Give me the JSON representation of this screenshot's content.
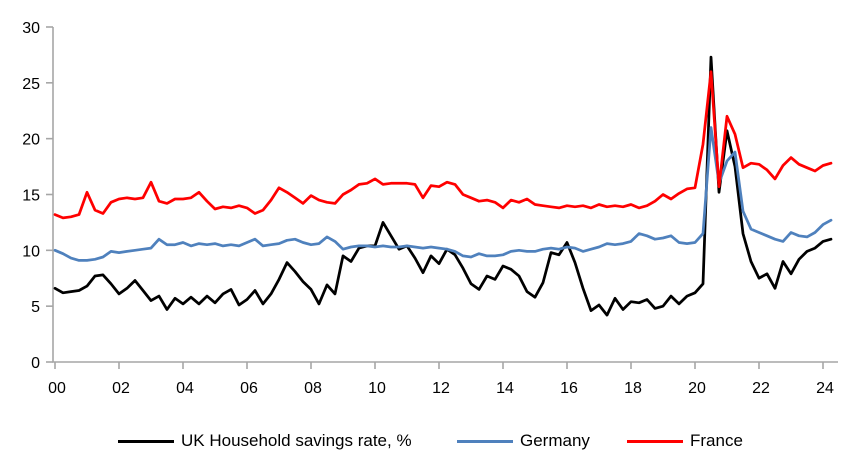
{
  "chart_data": {
    "type": "line",
    "title": "",
    "grid": false,
    "legend_position": "bottom",
    "x_axis": {
      "tick_labels": [
        "00",
        "02",
        "04",
        "06",
        "08",
        "10",
        "12",
        "14",
        "16",
        "18",
        "20",
        "22",
        "24"
      ],
      "tick_positions_years": [
        0,
        2,
        4,
        6,
        8,
        10,
        12,
        14,
        16,
        18,
        20,
        22,
        24
      ],
      "start_year": 2000,
      "step_years": 0.25,
      "frequency": "quarterly"
    },
    "y_axis": {
      "ticks": [
        0,
        5,
        10,
        15,
        20,
        25,
        30
      ],
      "range": [
        0,
        30
      ]
    },
    "series": [
      {
        "name": "UK Household savings rate, %",
        "color": "#000000",
        "values": [
          6.6,
          6.2,
          6.3,
          6.4,
          6.8,
          7.7,
          7.8,
          7.0,
          6.1,
          6.6,
          7.3,
          6.4,
          5.5,
          5.9,
          4.7,
          5.7,
          5.2,
          5.8,
          5.2,
          5.9,
          5.3,
          6.1,
          6.5,
          5.1,
          5.6,
          6.4,
          5.2,
          6.1,
          7.4,
          8.9,
          8.1,
          7.2,
          6.5,
          5.2,
          6.9,
          6.1,
          9.5,
          9.0,
          10.2,
          10.4,
          10.4,
          12.5,
          11.3,
          10.1,
          10.4,
          9.3,
          8.0,
          9.5,
          8.8,
          10.1,
          9.6,
          8.4,
          7.0,
          6.5,
          7.7,
          7.4,
          8.6,
          8.3,
          7.7,
          6.3,
          5.8,
          7.1,
          9.8,
          9.6,
          10.7,
          8.9,
          6.6,
          4.6,
          5.1,
          4.2,
          5.7,
          4.7,
          5.4,
          5.3,
          5.6,
          4.8,
          5.0,
          5.9,
          5.2,
          5.9,
          6.2,
          7.0,
          27.3,
          15.2,
          20.7,
          17.5,
          11.5,
          9.0,
          7.5,
          7.9,
          6.6,
          9.0,
          7.9,
          9.2,
          9.9,
          10.2,
          10.8,
          11.0
        ]
      },
      {
        "name": "Germany",
        "color": "#4F81BD",
        "values": [
          10.0,
          9.7,
          9.3,
          9.1,
          9.1,
          9.2,
          9.4,
          9.9,
          9.8,
          9.9,
          10.0,
          10.1,
          10.2,
          11.0,
          10.5,
          10.5,
          10.7,
          10.4,
          10.6,
          10.5,
          10.6,
          10.4,
          10.5,
          10.4,
          10.7,
          11.0,
          10.4,
          10.5,
          10.6,
          10.9,
          11.0,
          10.7,
          10.5,
          10.6,
          11.2,
          10.8,
          10.1,
          10.3,
          10.4,
          10.4,
          10.3,
          10.4,
          10.3,
          10.3,
          10.4,
          10.3,
          10.2,
          10.3,
          10.2,
          10.1,
          9.9,
          9.5,
          9.4,
          9.7,
          9.5,
          9.5,
          9.6,
          9.9,
          10.0,
          9.9,
          9.9,
          10.1,
          10.2,
          10.1,
          10.3,
          10.2,
          9.9,
          10.1,
          10.3,
          10.6,
          10.5,
          10.6,
          10.8,
          11.5,
          11.3,
          11.0,
          11.1,
          11.3,
          10.7,
          10.6,
          10.7,
          11.5,
          21.0,
          16.0,
          18.0,
          18.8,
          13.5,
          11.9,
          11.6,
          11.3,
          11.0,
          10.8,
          11.6,
          11.3,
          11.2,
          11.6,
          12.3,
          12.7
        ]
      },
      {
        "name": "France",
        "color": "#FF0000",
        "values": [
          13.2,
          12.9,
          13.0,
          13.2,
          15.2,
          13.6,
          13.3,
          14.3,
          14.6,
          14.7,
          14.6,
          14.7,
          16.1,
          14.4,
          14.2,
          14.6,
          14.6,
          14.7,
          15.2,
          14.4,
          13.7,
          13.9,
          13.8,
          14.0,
          13.8,
          13.3,
          13.6,
          14.5,
          15.6,
          15.2,
          14.7,
          14.2,
          14.9,
          14.5,
          14.3,
          14.2,
          15.0,
          15.4,
          15.9,
          16.0,
          16.4,
          15.9,
          16.0,
          16.0,
          16.0,
          15.9,
          14.7,
          15.8,
          15.7,
          16.1,
          15.9,
          15.0,
          14.7,
          14.4,
          14.5,
          14.3,
          13.8,
          14.5,
          14.3,
          14.6,
          14.1,
          14.0,
          13.9,
          13.8,
          14.0,
          13.9,
          14.0,
          13.8,
          14.1,
          13.9,
          14.0,
          13.9,
          14.1,
          13.8,
          14.0,
          14.4,
          15.0,
          14.6,
          15.1,
          15.5,
          15.6,
          19.5,
          26.0,
          15.7,
          22.0,
          20.4,
          17.4,
          17.8,
          17.7,
          17.2,
          16.4,
          17.6,
          18.3,
          17.7,
          17.4,
          17.1,
          17.6,
          17.8
        ]
      }
    ]
  },
  "colors": {
    "axis": "#A6A6A6",
    "background": "#FFFFFF",
    "text": "#000000"
  }
}
